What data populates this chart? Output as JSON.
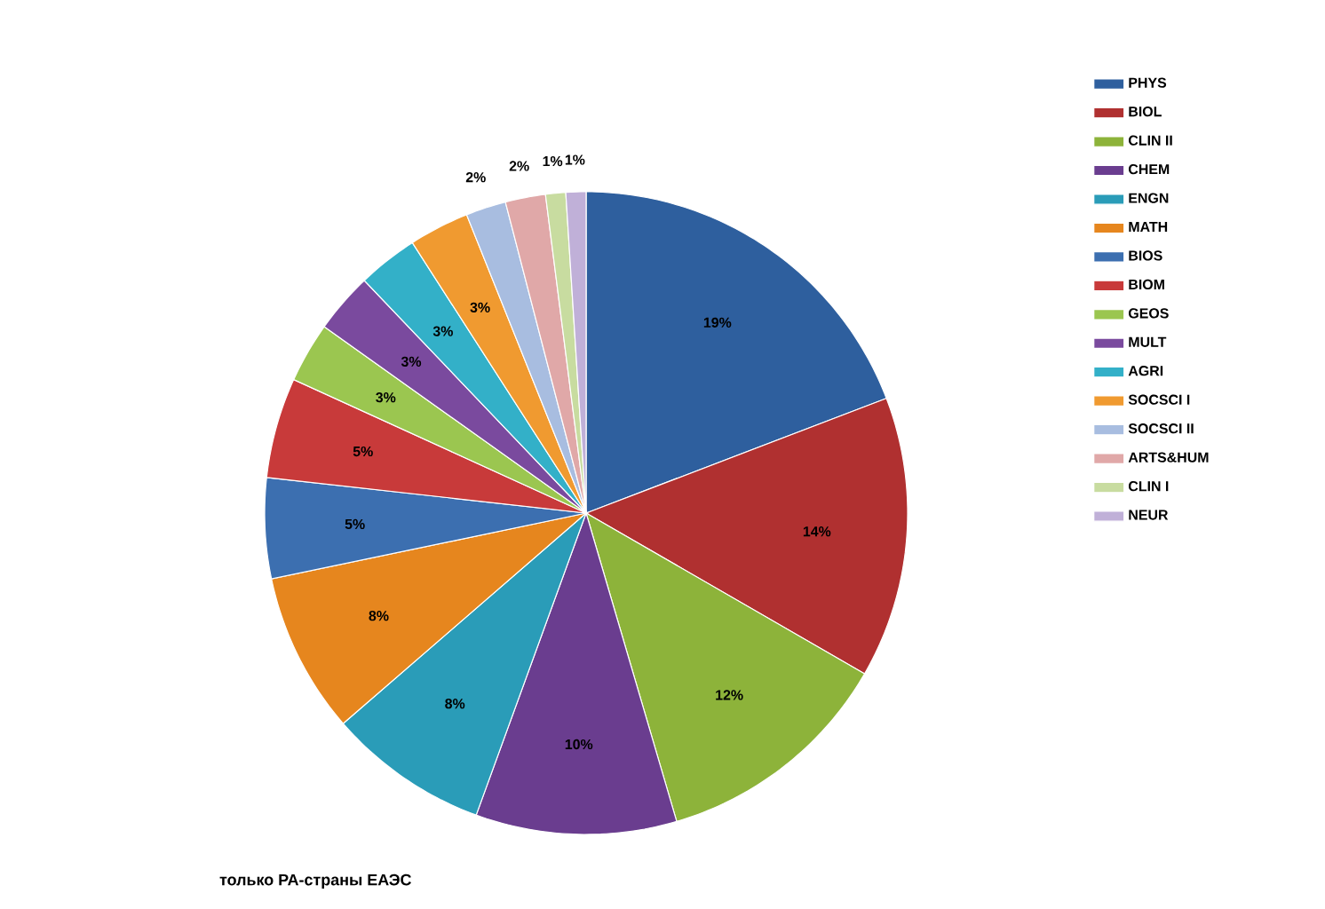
{
  "chart_data": {
    "type": "pie",
    "categories": [
      "PHYS",
      "BIOL",
      "CLIN II",
      "CHEM",
      "ENGN",
      "MATH",
      "BIOS",
      "BIOM",
      "GEOS",
      "MULT",
      "AGRI",
      "SOCSCI I",
      "SOCSCI II",
      "ARTS&HUM",
      "CLIN I",
      "NEUR"
    ],
    "values": [
      19,
      14,
      12,
      10,
      8,
      8,
      5,
      5,
      3,
      3,
      3,
      3,
      2,
      2,
      1,
      1
    ],
    "value_labels": [
      "19%",
      "14%",
      "12%",
      "10%",
      "8%",
      "8%",
      "5%",
      "5%",
      "3%",
      "3%",
      "3%",
      "3%",
      "2%",
      "2%",
      "1%",
      "1%"
    ],
    "colors": [
      "#2e5f9e",
      "#b03030",
      "#8db33a",
      "#6a3d8f",
      "#2a9cb8",
      "#e6861e",
      "#3c6fb0",
      "#c83a3a",
      "#9bc650",
      "#7a4a9e",
      "#33b0c8",
      "#f09a30",
      "#a8bde0",
      "#e0a8a8",
      "#c8dca0",
      "#c0b0d8"
    ],
    "legend": "right",
    "annotations": [
      "только РА-страны ЕАЭС"
    ]
  }
}
